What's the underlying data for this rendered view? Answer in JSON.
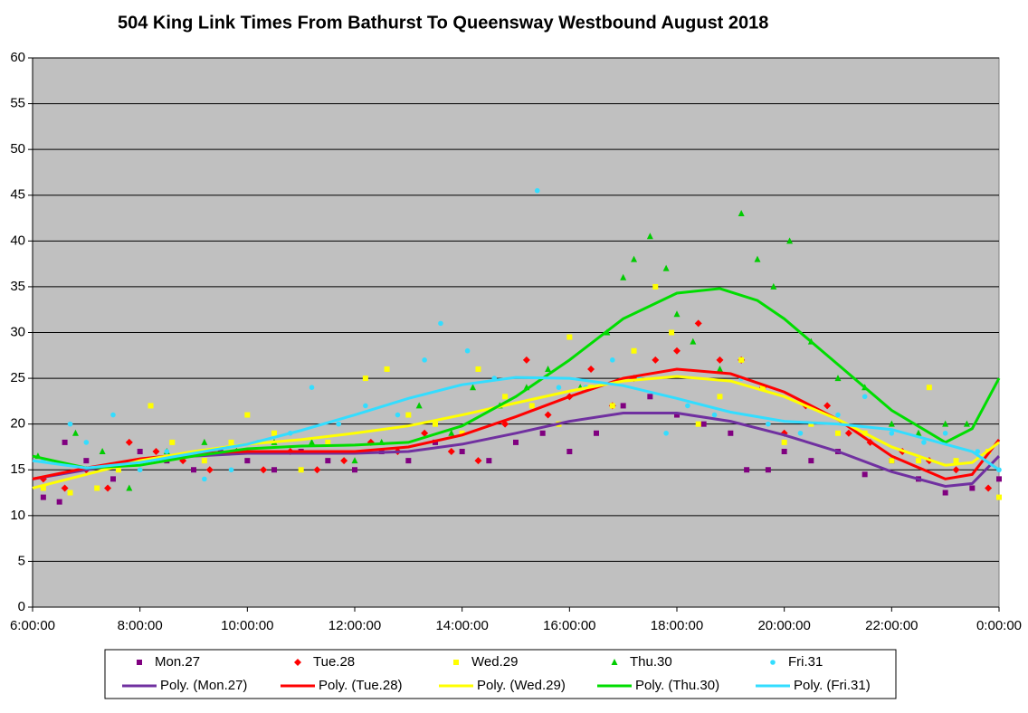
{
  "chart_data": {
    "type": "scatter",
    "title": "504 King Link Times From Bathurst To Queensway Westbound August 2018",
    "xlim": [
      6,
      24
    ],
    "ylim": [
      0,
      60
    ],
    "xticks": [
      {
        "value": 6,
        "label": "6:00:00"
      },
      {
        "value": 8,
        "label": "8:00:00"
      },
      {
        "value": 10,
        "label": "10:00:00"
      },
      {
        "value": 12,
        "label": "12:00:00"
      },
      {
        "value": 14,
        "label": "14:00:00"
      },
      {
        "value": 16,
        "label": "16:00:00"
      },
      {
        "value": 18,
        "label": "18:00:00"
      },
      {
        "value": 20,
        "label": "20:00:00"
      },
      {
        "value": 22,
        "label": "22:00:00"
      },
      {
        "value": 24,
        "label": "0:00:00"
      }
    ],
    "yticks": [
      0,
      5,
      10,
      15,
      20,
      25,
      30,
      35,
      40,
      45,
      50,
      55,
      60
    ],
    "grid": true,
    "plot_background": "#c0c0c0",
    "legend": "bottom",
    "series": [
      {
        "name": "Mon.27",
        "mode": "markers",
        "marker": "square",
        "color": "#800080",
        "x": [
          6.2,
          6.5,
          6.6,
          7,
          7.5,
          8,
          8.5,
          9,
          9.5,
          10,
          10.5,
          11,
          11.5,
          12,
          12.5,
          13,
          13.5,
          14,
          14.5,
          15,
          15.5,
          16,
          16.5,
          17,
          17.5,
          18,
          18.5,
          19,
          19.3,
          19.7,
          20,
          20.5,
          21,
          21.5,
          22,
          22.5,
          23,
          23.5,
          24
        ],
        "values": [
          12,
          11.5,
          18,
          16,
          14,
          17,
          16,
          15,
          17,
          16,
          15,
          17,
          16,
          15,
          17,
          16,
          18,
          17,
          16,
          18,
          19,
          17,
          19,
          22,
          23,
          21,
          20,
          19,
          15,
          15,
          17,
          16,
          17,
          14.5,
          16,
          14,
          12.5,
          13,
          14
        ]
      },
      {
        "name": "Tue.28",
        "mode": "markers",
        "marker": "diamond",
        "color": "#ff0000",
        "x": [
          6.2,
          6.6,
          7,
          7.4,
          7.8,
          8.3,
          8.8,
          9.3,
          9.8,
          10.3,
          10.8,
          11.3,
          11.8,
          12.3,
          12.8,
          13.3,
          13.8,
          14.3,
          14.8,
          15.2,
          15.6,
          16,
          16.4,
          16.8,
          17.2,
          17.6,
          18,
          18.4,
          18.8,
          19.2,
          19.6,
          20,
          20.4,
          20.8,
          21.2,
          21.6,
          22.2,
          22.7,
          23.2,
          23.8
        ],
        "values": [
          14,
          13,
          15,
          13,
          18,
          17,
          16,
          15,
          17,
          15,
          17,
          15,
          16,
          18,
          17,
          19,
          17,
          16,
          20,
          27,
          21,
          23,
          26,
          22,
          25,
          27,
          28,
          31,
          27,
          27,
          24,
          19,
          22,
          22,
          19,
          18,
          17,
          16,
          15,
          13
        ]
      },
      {
        "name": "Wed.29",
        "mode": "markers",
        "marker": "square",
        "color": "#ffff00",
        "x": [
          6.2,
          6.7,
          7.2,
          7.6,
          8.2,
          8.6,
          9.2,
          9.7,
          10,
          10.5,
          11,
          11.5,
          12.2,
          12.6,
          13,
          13.5,
          14,
          14.3,
          14.8,
          15.3,
          15.8,
          16,
          16.4,
          16.8,
          17.2,
          17.6,
          17.9,
          18.4,
          18.8,
          19.2,
          19.6,
          20,
          20.5,
          21,
          21.5,
          22,
          22.5,
          22.7,
          23.2,
          23.8,
          24
        ],
        "values": [
          13,
          12.5,
          13,
          15,
          22,
          18,
          16,
          18,
          21,
          19,
          15,
          18,
          25,
          26,
          21,
          20,
          19,
          26,
          23,
          22,
          20,
          29.5,
          24,
          22,
          28,
          35,
          30,
          20,
          23,
          27,
          24,
          18,
          20,
          19,
          19,
          16,
          16,
          24,
          16,
          17,
          12
        ]
      },
      {
        "name": "Thu.30",
        "mode": "markers",
        "marker": "triangle",
        "color": "#00cc00",
        "x": [
          6.1,
          6.8,
          7.3,
          7.8,
          8.5,
          9.2,
          9.8,
          10.5,
          11.2,
          12,
          12.5,
          13.2,
          13.8,
          14.2,
          14.7,
          15.2,
          15.6,
          16.2,
          16.7,
          17,
          17.2,
          17.5,
          17.8,
          18,
          18.3,
          18.8,
          19.2,
          19.5,
          19.8,
          20.1,
          20.5,
          21,
          21.5,
          22,
          22.5,
          23,
          23.4
        ],
        "values": [
          16.5,
          19,
          17,
          13,
          17,
          18,
          17,
          18,
          18,
          16,
          18,
          22,
          19,
          24,
          22,
          24,
          26,
          24,
          30,
          36,
          38,
          40.5,
          37,
          32,
          29,
          26,
          43,
          38,
          35,
          40,
          29,
          25,
          24,
          20,
          19,
          20,
          20
        ]
      },
      {
        "name": "Fri.31",
        "mode": "markers",
        "marker": "circle",
        "color": "#33ddff",
        "x": [
          6.2,
          6.7,
          7,
          7.5,
          8,
          8.5,
          9.2,
          9.7,
          10.2,
          10.8,
          11.2,
          11.7,
          12.2,
          12.8,
          13.3,
          13.6,
          14.1,
          14.6,
          15.4,
          15.8,
          16.3,
          16.8,
          17.3,
          17.8,
          18.2,
          18.7,
          19.2,
          19.7,
          20.3,
          21,
          21.5,
          22,
          22.6,
          23,
          23.6,
          24
        ],
        "values": [
          16,
          20,
          18,
          21,
          15,
          17,
          14,
          15,
          18,
          19,
          24,
          20,
          22,
          21,
          27,
          31,
          28,
          25,
          45.5,
          24,
          24,
          27,
          25,
          19,
          22,
          21,
          25,
          20,
          19,
          21,
          23,
          19,
          18,
          19,
          17,
          15
        ]
      },
      {
        "name": "Poly. (Mon.27)",
        "mode": "line",
        "color": "#7030a0",
        "x": [
          6,
          7,
          8,
          9,
          10,
          11,
          12,
          13,
          14,
          15,
          16,
          17,
          18,
          19,
          20,
          21,
          22,
          23,
          23.5,
          24
        ],
        "values": [
          14,
          15,
          16,
          16.5,
          16.8,
          16.8,
          16.8,
          17,
          17.8,
          19,
          20.3,
          21.2,
          21.2,
          20.3,
          18.8,
          17,
          14.8,
          13.2,
          13.5,
          16.5
        ]
      },
      {
        "name": "Poly. (Tue.28)",
        "mode": "line",
        "color": "#ff0000",
        "x": [
          6,
          7,
          8,
          9,
          10,
          11,
          12,
          13,
          14,
          15,
          16,
          17,
          18,
          19,
          20,
          21,
          22,
          23,
          23.5,
          24
        ],
        "values": [
          14,
          15.2,
          16.2,
          16.8,
          17,
          17,
          17,
          17.5,
          18.8,
          20.8,
          23,
          25,
          26,
          25.5,
          23.5,
          20.5,
          16.5,
          14,
          14.5,
          18.3
        ]
      },
      {
        "name": "Poly. (Wed.29)",
        "mode": "line",
        "color": "#ffff00",
        "x": [
          6,
          7,
          8,
          9,
          10,
          11,
          12,
          13,
          14,
          15,
          16,
          17,
          18,
          19,
          20,
          21,
          22,
          23,
          23.5,
          24
        ],
        "values": [
          13,
          14.5,
          16,
          17,
          17.8,
          18.3,
          19,
          19.8,
          21,
          22.3,
          23.6,
          24.7,
          25.2,
          24.7,
          23,
          20.5,
          17.5,
          15.5,
          15.8,
          18
        ]
      },
      {
        "name": "Poly. (Thu.30)",
        "mode": "line",
        "color": "#00dd00",
        "x": [
          6,
          7,
          8,
          9,
          10,
          11,
          12,
          13,
          14,
          15,
          16,
          17,
          18,
          18.8,
          19.5,
          20,
          21,
          22,
          23,
          23.5,
          24
        ],
        "values": [
          16.5,
          15.2,
          15.5,
          16.5,
          17.3,
          17.6,
          17.7,
          18,
          19.8,
          23,
          27,
          31.5,
          34.3,
          34.8,
          33.5,
          31.5,
          26.5,
          21.5,
          18,
          19.5,
          25
        ]
      },
      {
        "name": "Poly. (Fri.31)",
        "mode": "line",
        "color": "#33ddff",
        "x": [
          6,
          7,
          8,
          9,
          10,
          11,
          12,
          13,
          14,
          15,
          16,
          17,
          18,
          19,
          20,
          21,
          22,
          23,
          23.5,
          24
        ],
        "values": [
          16,
          15.2,
          15.8,
          16.8,
          17.8,
          19.3,
          21,
          22.8,
          24.3,
          25.1,
          25,
          24.2,
          22.8,
          21.3,
          20.3,
          20,
          19.4,
          17.8,
          17,
          15
        ]
      }
    ]
  }
}
